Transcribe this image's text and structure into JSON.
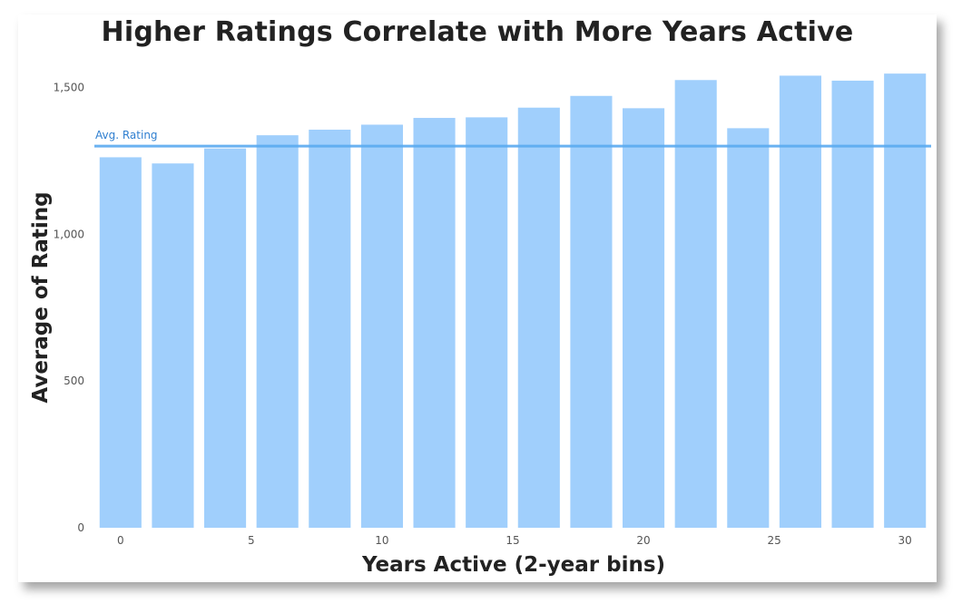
{
  "chart_data": {
    "type": "bar",
    "title": "Higher Ratings Correlate with More Years Active",
    "xlabel": "Years Active (2-year bins)",
    "ylabel": "Average of Rating",
    "x": [
      0,
      2,
      4,
      6,
      8,
      10,
      12,
      14,
      16,
      18,
      20,
      22,
      24,
      26,
      28,
      30
    ],
    "values": [
      1262,
      1241,
      1292,
      1337,
      1356,
      1373,
      1396,
      1398,
      1431,
      1471,
      1429,
      1525,
      1361,
      1540,
      1523,
      1547
    ],
    "xlim": [
      -1,
      31
    ],
    "ylim": [
      0,
      1600
    ],
    "x_ticks": [
      0,
      5,
      10,
      15,
      20,
      25,
      30
    ],
    "y_ticks": [
      0,
      500,
      1000,
      1500
    ],
    "y_tick_labels": [
      "0",
      "500",
      "1,000",
      "1,500"
    ],
    "reference_line": {
      "label": "Avg. Rating",
      "value": 1300
    },
    "bar_color": "#a0cffc",
    "line_color": "#5aaaf0",
    "grid": false
  }
}
